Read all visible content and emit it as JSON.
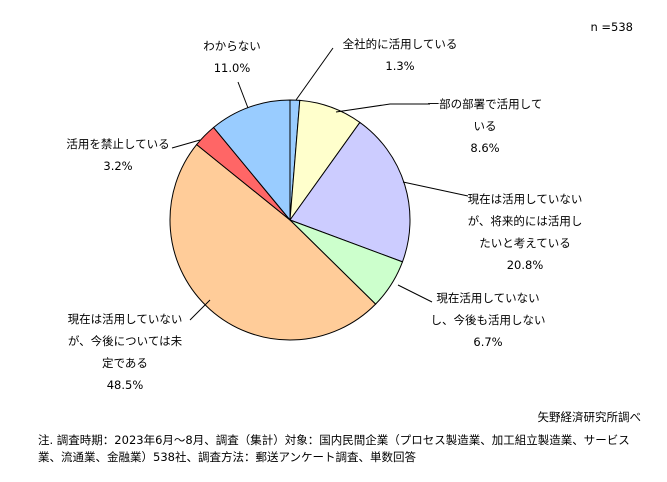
{
  "chart_data": {
    "type": "pie",
    "sample_label": "n =538",
    "slices": [
      {
        "label_lines": [
          "全社的に活用している"
        ],
        "value": 1.3,
        "value_label": "1.3%",
        "color": "#99ccff"
      },
      {
        "label_lines": [
          "一部の部署で活用して",
          "いる"
        ],
        "value": 8.6,
        "value_label": "8.6%",
        "color": "#ffffcc"
      },
      {
        "label_lines": [
          "現在は活用していない",
          "が、将来的には活用し",
          "たいと考えている"
        ],
        "value": 20.8,
        "value_label": "20.8%",
        "color": "#ccccff"
      },
      {
        "label_lines": [
          "現在活用していない",
          "し、今後も活用しない"
        ],
        "value": 6.7,
        "value_label": "6.7%",
        "color": "#ccffcc"
      },
      {
        "label_lines": [
          "現在は活用していない",
          "が、今後については未",
          "定である"
        ],
        "value": 48.5,
        "value_label": "48.5%",
        "color": "#ffcc99"
      },
      {
        "label_lines": [
          "活用を禁止している"
        ],
        "value": 3.2,
        "value_label": "3.2%",
        "color": "#ff6666"
      },
      {
        "label_lines": [
          "わからない"
        ],
        "value": 11.0,
        "value_label": "11.0%",
        "color": "#99ccff"
      }
    ]
  },
  "source": "矢野経済研究所調べ",
  "note": "注. 調査時期：2023年6月～8月、調査（集計）対象：国内民間企業（プロセス製造業、加工組立製造業、サービス業、流通業、金融業）538社、調査方法：郵送アンケート調査、単数回答"
}
